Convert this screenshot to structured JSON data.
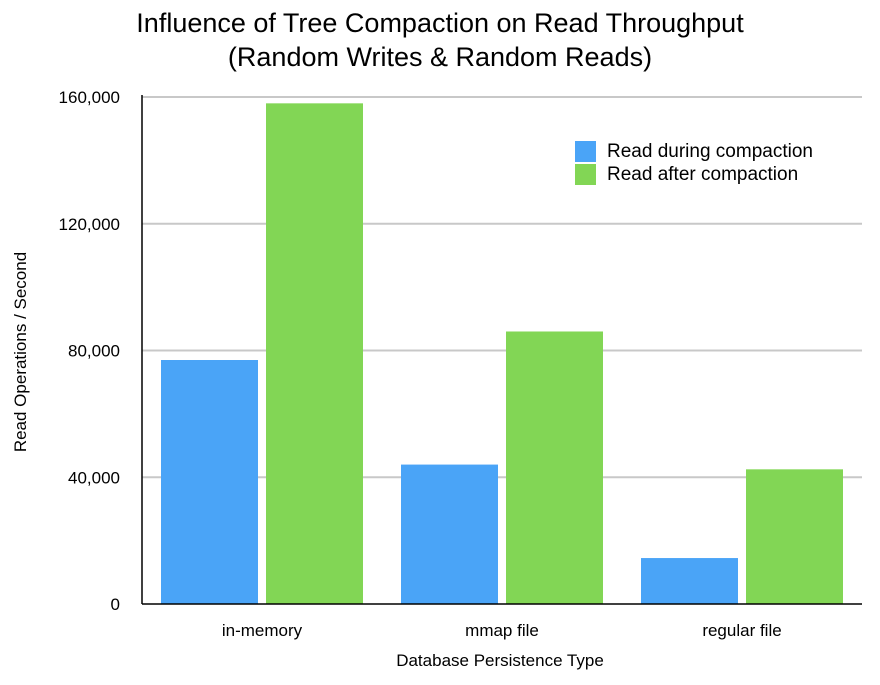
{
  "chart_data": {
    "type": "bar",
    "title": [
      "Influence of Tree Compaction on Read Throughput",
      "(Random Writes & Random Reads)"
    ],
    "xlabel": "Database Persistence Type",
    "ylabel": "Read Operations / Second",
    "categories": [
      "in-memory",
      "mmap file",
      "regular file"
    ],
    "series": [
      {
        "name": "Read during compaction",
        "color": "#4aa4f7",
        "values": [
          77000,
          44000,
          14500
        ]
      },
      {
        "name": "Read after compaction",
        "color": "#82d655",
        "values": [
          158000,
          86000,
          42500
        ]
      }
    ],
    "ylim": [
      0,
      160000
    ],
    "yticks": [
      0,
      40000,
      80000,
      120000,
      160000
    ],
    "ytick_labels": [
      "0",
      "40,000",
      "80,000",
      "120,000",
      "160,000"
    ],
    "grid": true,
    "legend_position": "top-right"
  }
}
